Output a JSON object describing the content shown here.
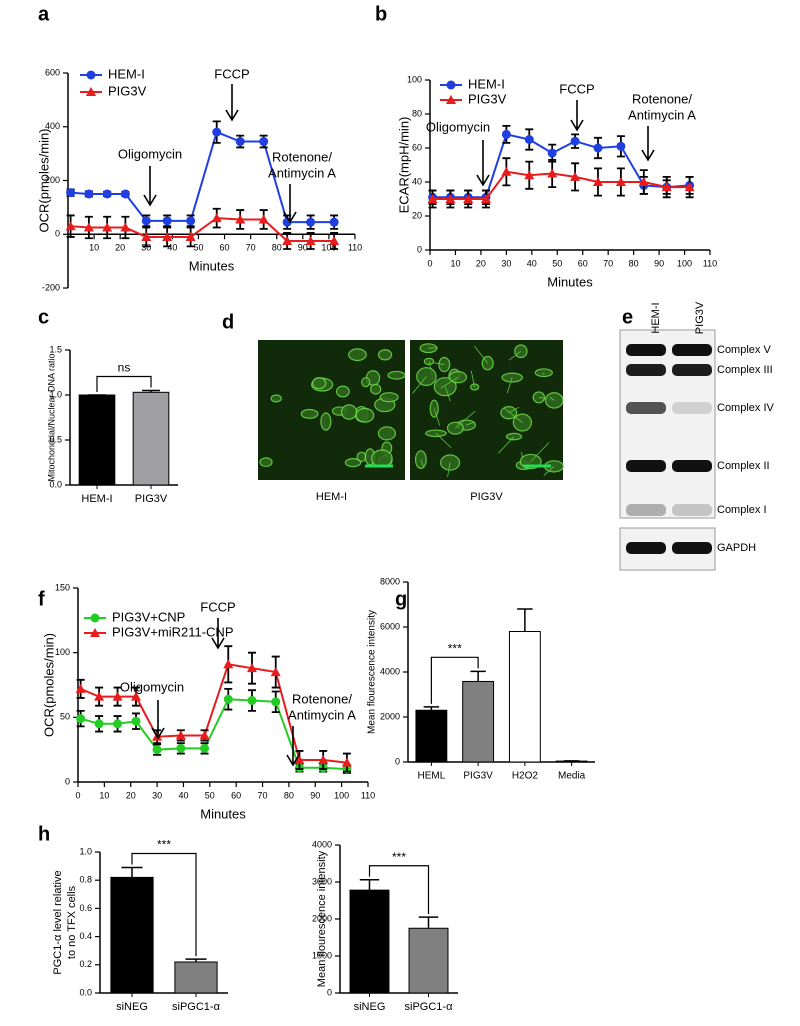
{
  "chart_data": [
    {
      "type": "line",
      "label": "a",
      "ylabel": "OCR(pmoles/min)",
      "xlabel": "Minutes",
      "xlim": [
        0,
        110
      ],
      "ylim": [
        -200,
        600
      ],
      "xticks": [
        10,
        20,
        30,
        40,
        50,
        60,
        70,
        80,
        90,
        100,
        110
      ],
      "yticks": [
        -200,
        0,
        200,
        400,
        600
      ],
      "x": [
        1,
        8,
        15,
        22,
        30,
        38,
        47,
        57,
        66,
        75,
        84,
        93,
        102
      ],
      "series": [
        {
          "name": "HEM-I",
          "color": "#1f3fe0",
          "marker": "circle",
          "values": [
            155,
            150,
            150,
            150,
            50,
            50,
            50,
            380,
            345,
            345,
            45,
            45,
            45
          ],
          "errors": [
            12,
            10,
            8,
            8,
            20,
            20,
            20,
            40,
            22,
            22,
            25,
            25,
            25
          ]
        },
        {
          "name": "PIG3V",
          "color": "#e81c1c",
          "marker": "triangle",
          "values": [
            30,
            25,
            25,
            25,
            -10,
            -10,
            -10,
            60,
            55,
            55,
            -25,
            -25,
            -25
          ],
          "errors": [
            40,
            40,
            40,
            40,
            35,
            35,
            35,
            35,
            35,
            35,
            30,
            30,
            30
          ]
        }
      ],
      "annotations": [
        [
          "Oligomycin"
        ],
        [
          "FCCP"
        ],
        [
          "Rotenone/",
          "Antimycin A"
        ]
      ]
    },
    {
      "type": "line",
      "label": "b",
      "ylabel": "ECAR(mpH/min)",
      "xlabel": "Minutes",
      "xlim": [
        0,
        110
      ],
      "ylim": [
        0,
        100
      ],
      "xticks": [
        0,
        10,
        20,
        30,
        40,
        50,
        60,
        70,
        80,
        90,
        100,
        110
      ],
      "yticks": [
        0,
        20,
        40,
        60,
        80,
        100
      ],
      "x": [
        1,
        8,
        15,
        22,
        30,
        39,
        48,
        57,
        66,
        75,
        84,
        93,
        102
      ],
      "series": [
        {
          "name": "HEM-I",
          "color": "#1f3fe0",
          "marker": "circle",
          "values": [
            31,
            31,
            31,
            31,
            68,
            65,
            57,
            64,
            60,
            61,
            38,
            37,
            38
          ],
          "errors": [
            4,
            4,
            4,
            4,
            5,
            6,
            5,
            4,
            6,
            6,
            5,
            4,
            5
          ]
        },
        {
          "name": "PIG3V",
          "color": "#e81c1c",
          "marker": "triangle",
          "values": [
            30,
            30,
            30,
            30,
            46,
            44,
            45,
            43,
            40,
            40,
            40,
            37,
            37
          ],
          "errors": [
            5,
            5,
            5,
            5,
            8,
            8,
            8,
            8,
            8,
            8,
            7,
            6,
            6
          ]
        }
      ],
      "annotations": [
        [
          "Oligomycin"
        ],
        [
          "FCCP"
        ],
        [
          "Rotenone/",
          "Antimycin A"
        ]
      ]
    },
    {
      "type": "bar",
      "label": "c",
      "ylabel": "Mitochondrial/Nuclear DNA ratio",
      "categories": [
        "HEM-I",
        "PIG3V"
      ],
      "values": [
        1.0,
        1.03
      ],
      "errors": [
        0.0,
        0.02
      ],
      "colors": [
        "#000000",
        "#a0a0a4"
      ],
      "ylim": [
        0,
        1.5
      ],
      "yticks": [
        {
          "value": 0,
          "label": "0.0"
        },
        0.5,
        {
          "value": 1,
          "label": "1.0"
        },
        1.5
      ],
      "significance": "ns"
    },
    {
      "type": "image",
      "label": "d",
      "captions": [
        "HEM-I",
        "PIG3V"
      ]
    },
    {
      "type": "blot",
      "label": "e",
      "lanes": [
        "HEM-I",
        "PIG3V"
      ],
      "bands": [
        "Complex V",
        "Complex III",
        "Complex IV",
        "Complex II",
        "Complex I",
        "GAPDH"
      ]
    },
    {
      "type": "line",
      "label": "f",
      "ylabel": "OCR(pmoles/min)",
      "xlabel": "Minutes",
      "xlim": [
        0,
        110
      ],
      "ylim": [
        0,
        150
      ],
      "xticks": [
        0,
        10,
        20,
        30,
        40,
        50,
        60,
        70,
        80,
        90,
        100,
        110
      ],
      "yticks": [
        0,
        50,
        100,
        150
      ],
      "x": [
        1,
        8,
        15,
        22,
        30,
        39,
        48,
        57,
        66,
        75,
        84,
        93,
        102
      ],
      "series": [
        {
          "name": "PIG3V+CNP",
          "color": "#22cc22",
          "marker": "circle",
          "values": [
            49,
            45,
            45,
            47,
            25,
            26,
            26,
            64,
            63,
            62,
            11,
            11,
            10
          ],
          "errors": [
            6,
            6,
            6,
            6,
            4,
            4,
            4,
            8,
            8,
            8,
            3,
            3,
            3
          ]
        },
        {
          "name": "PIG3V+miR211-CNP",
          "color": "#e81c1c",
          "marker": "triangle",
          "values": [
            72,
            66,
            66,
            66,
            35,
            36,
            36,
            91,
            88,
            85,
            17,
            17,
            15
          ],
          "errors": [
            7,
            7,
            7,
            7,
            5,
            4,
            4,
            14,
            12,
            12,
            7,
            7,
            7
          ]
        }
      ],
      "annotations": [
        [
          "Oligomycin"
        ],
        [
          "FCCP"
        ],
        [
          "Rotenone/",
          "Antimycin A"
        ]
      ]
    },
    {
      "type": "bar",
      "label": "g",
      "ylabel": "Mean flourescence intensity",
      "categories": [
        "HEML",
        "PIG3V",
        "H2O2",
        "Media"
      ],
      "values": [
        2300,
        3580,
        5800,
        40
      ],
      "errors": [
        150,
        450,
        1000,
        10
      ],
      "colors": [
        "#000000",
        "#808080",
        "#ffffff",
        "#000000"
      ],
      "ylim": [
        0,
        8000
      ],
      "yticks": [
        0,
        2000,
        4000,
        6000,
        8000
      ],
      "significance": "***"
    },
    {
      "type": "bar",
      "label": "h",
      "ylabel": [
        "PGC1-α level relative",
        "to no TFX cells"
      ],
      "categories": [
        "siNEG",
        "siPGC1-α"
      ],
      "values": [
        0.82,
        0.22
      ],
      "errors": [
        0.07,
        0.02
      ],
      "colors": [
        "#000000",
        "#808080"
      ],
      "ylim": [
        0,
        1
      ],
      "yticks": [
        {
          "value": 0,
          "label": "0.0"
        },
        0.2,
        0.4,
        0.6,
        0.8,
        {
          "value": 1,
          "label": "1.0"
        }
      ],
      "significance": "***"
    },
    {
      "type": "bar",
      "ylabel": "Mean flourescence intensity",
      "categories": [
        "siNEG",
        "siPGC1-α"
      ],
      "values": [
        2780,
        1750
      ],
      "errors": [
        280,
        300
      ],
      "colors": [
        "#000000",
        "#808080"
      ],
      "ylim": [
        0,
        4000
      ],
      "yticks": [
        0,
        1000,
        2000,
        3000,
        4000
      ],
      "significance": "***"
    }
  ]
}
